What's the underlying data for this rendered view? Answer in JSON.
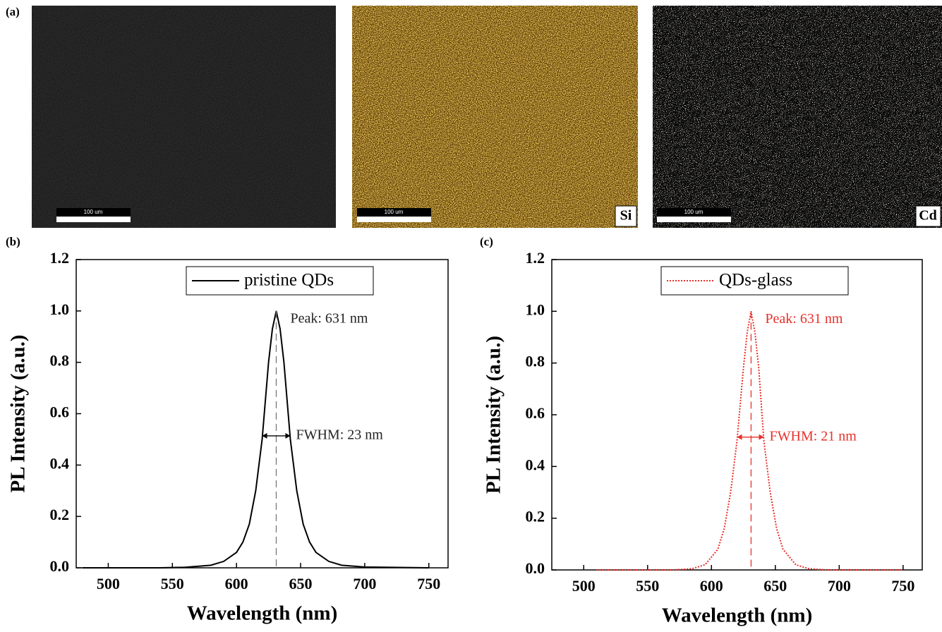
{
  "images": {
    "label": "(a)",
    "panels": [
      {
        "scale_bar": "100 um"
      },
      {
        "scale_bar": "100 um",
        "element": "Si"
      },
      {
        "scale_bar": "100 um",
        "element": "Cd"
      }
    ]
  },
  "chart_data": [
    {
      "type": "line",
      "panel_label": "(b)",
      "x_label": "Wavelength (nm)",
      "y_label": "PL Intensity (a.u.)",
      "x": [
        480,
        540,
        560,
        580,
        590,
        600,
        605,
        610,
        615,
        620,
        625,
        628,
        631,
        634,
        637,
        642,
        647,
        652,
        657,
        662,
        672,
        682,
        700,
        750
      ],
      "series": [
        {
          "name": "pristine QDs",
          "color": "#000000",
          "line_style": "solid",
          "values": [
            0,
            0,
            0.002,
            0.01,
            0.025,
            0.06,
            0.1,
            0.17,
            0.3,
            0.5,
            0.8,
            0.93,
            1.0,
            0.93,
            0.8,
            0.5,
            0.3,
            0.17,
            0.1,
            0.06,
            0.025,
            0.01,
            0.003,
            0
          ]
        }
      ],
      "annotations": [
        "Peak: 631 nm",
        "FWHM: 23 nm"
      ],
      "xlim": [
        475,
        765
      ],
      "xticks": [
        500,
        550,
        600,
        650,
        700,
        750
      ],
      "ylim": [
        0,
        1.2
      ],
      "yticks": [
        {
          "value": 0,
          "label": "0.0"
        },
        0.2,
        0.4,
        0.6,
        0.8,
        {
          "value": 1,
          "label": "1.0"
        },
        1.2
      ],
      "legend": "top"
    },
    {
      "type": "line",
      "panel_label": "(c)",
      "x_label": "Wavelength (nm)",
      "y_label": "PL Intensity (a.u.)",
      "x": [
        510,
        570,
        585,
        595,
        605,
        610,
        615,
        620,
        625,
        628,
        631,
        634,
        637,
        641,
        646,
        651,
        656,
        666,
        676,
        690,
        750
      ],
      "series": [
        {
          "name": "QDs-glass",
          "color": "#e8302a",
          "line_style": "dotted",
          "values": [
            0,
            0,
            0.005,
            0.02,
            0.08,
            0.16,
            0.3,
            0.5,
            0.78,
            0.92,
            1.0,
            0.92,
            0.78,
            0.5,
            0.3,
            0.16,
            0.08,
            0.02,
            0.005,
            0,
            0
          ]
        }
      ],
      "annotations": [
        "Peak: 631 nm",
        "FWHM: 21 nm"
      ],
      "xlim": [
        475,
        765
      ],
      "xticks": [
        500,
        550,
        600,
        650,
        700,
        750
      ],
      "ylim": [
        0,
        1.2
      ],
      "yticks": [
        {
          "value": 0,
          "label": "0.0"
        },
        0.2,
        0.4,
        0.6,
        0.8,
        {
          "value": 1,
          "label": "1.0"
        },
        1.2
      ],
      "legend": "top"
    }
  ]
}
